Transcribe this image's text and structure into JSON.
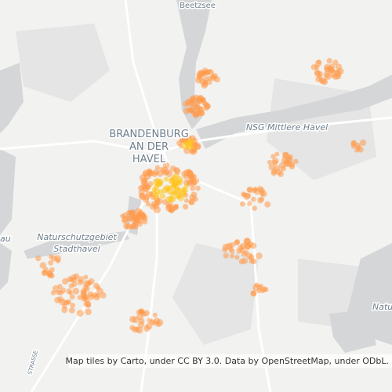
{
  "map": {
    "labels": {
      "lake_north": "Beetzsee",
      "city": [
        "BRANDENBURG",
        "AN DER",
        "HAVEL"
      ],
      "reserve_east": "NSG Mittlere Havel",
      "reserve_west": [
        "Naturschutzgebiet",
        "Stadthavel"
      ],
      "edge_west": "au",
      "edge_east": "Natur",
      "street": "STRASSE"
    },
    "attribution": "Map tiles by Carto, under CC BY 3.0. Data by OpenStreetMap, under ODbL."
  }
}
